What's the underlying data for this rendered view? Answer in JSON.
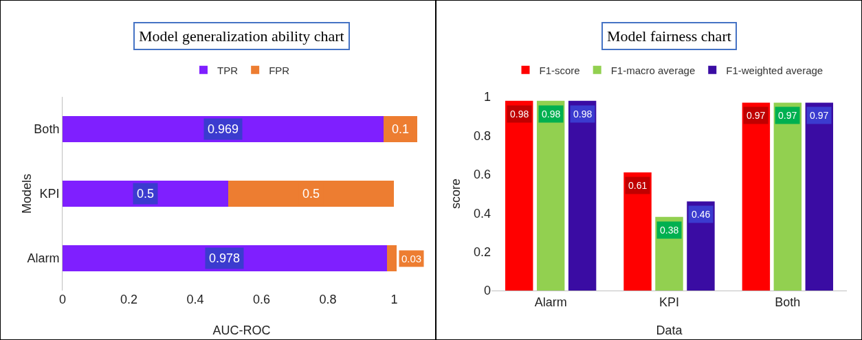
{
  "chart_data": [
    {
      "type": "bar",
      "title": "Model generalization ability chart",
      "orientation": "horizontal",
      "stacked": true,
      "categories": [
        "Both",
        "KPI",
        "Alarm"
      ],
      "xlabel": "AUC-ROC",
      "ylabel": "Models",
      "xlim": [
        0,
        1.08
      ],
      "xticks": [
        0,
        0.2,
        0.4,
        0.6,
        0.8,
        1
      ],
      "grid": false,
      "legend": "top",
      "data_labels": true,
      "series": [
        {
          "name": "TPR",
          "color": "#7f1fff",
          "values": [
            0.969,
            0.5,
            0.978
          ]
        },
        {
          "name": "FPR",
          "color": "#ed7d31",
          "values": [
            0.1,
            0.5,
            0.03
          ]
        }
      ]
    },
    {
      "type": "bar",
      "title": "Model fairness chart",
      "categories": [
        "Alarm",
        "KPI",
        "Both"
      ],
      "xlabel": "Data",
      "ylabel": "score",
      "ylim": [
        0,
        1
      ],
      "yticks": [
        0,
        0.2,
        0.4,
        0.6,
        0.8,
        1
      ],
      "grid": false,
      "legend": "top",
      "data_labels": true,
      "series": [
        {
          "name": "F1-score",
          "color": "#ff0000",
          "values": [
            0.98,
            0.61,
            0.97
          ]
        },
        {
          "name": "F1-macro average",
          "color": "#92d050",
          "values": [
            0.98,
            0.38,
            0.97
          ]
        },
        {
          "name": "F1-weighted average",
          "color": "#3a0ca3",
          "values": [
            0.98,
            0.46,
            0.97
          ]
        }
      ]
    }
  ]
}
